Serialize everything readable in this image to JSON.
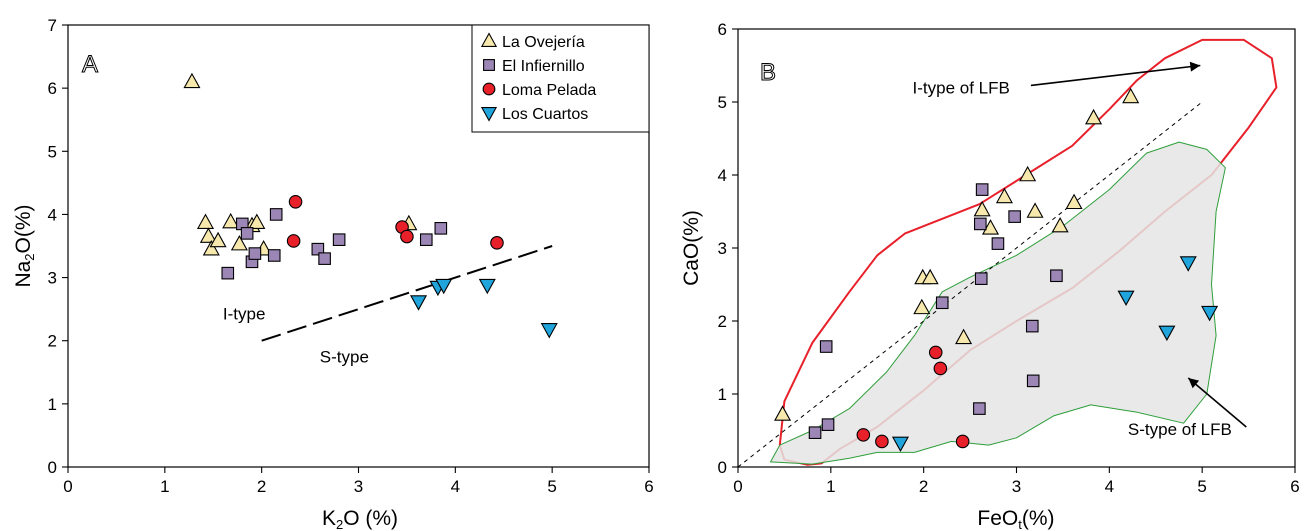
{
  "chart_data": [
    {
      "type": "scatter",
      "panel_label": "A",
      "xlabel": "K",
      "xlabel_sub": "2",
      "xlabel_tail": "O (%)",
      "ylabel": "Na",
      "ylabel_sub": "2",
      "ylabel_tail": "O(%)",
      "xlim": [
        0,
        6
      ],
      "ylim": [
        0,
        7
      ],
      "xticks": [
        "0",
        "1",
        "2",
        "3",
        "4",
        "5",
        "6"
      ],
      "yticks": [
        "0",
        "1",
        "2",
        "3",
        "4",
        "5",
        "6",
        "7"
      ],
      "legend": {
        "placement": "top-right",
        "entries": [
          {
            "label": "La Ovejería",
            "marker": "triangle-up",
            "color": "#f7e8ad"
          },
          {
            "label": "El Infiernillo",
            "marker": "square",
            "color": "#9b86b5"
          },
          {
            "label": "Loma Pelada",
            "marker": "circle",
            "color": "#e8202a"
          },
          {
            "label": "Los Cuartos",
            "marker": "triangle-down",
            "color": "#1fa5dc"
          }
        ]
      },
      "series": [
        {
          "name": "La Ovejería",
          "marker": "triangle-up",
          "color": "#f7e8ad",
          "points": [
            [
              1.28,
              6.1
            ],
            [
              1.42,
              3.87
            ],
            [
              1.45,
              3.65
            ],
            [
              1.48,
              3.45
            ],
            [
              1.55,
              3.58
            ],
            [
              1.68,
              3.88
            ],
            [
              1.77,
              3.53
            ],
            [
              1.9,
              3.82
            ],
            [
              1.95,
              3.87
            ],
            [
              2.02,
              3.45
            ],
            [
              3.52,
              3.85
            ]
          ]
        },
        {
          "name": "El Infiernillo",
          "marker": "square",
          "color": "#9b86b5",
          "points": [
            [
              1.65,
              3.07
            ],
            [
              1.8,
              3.85
            ],
            [
              1.85,
              3.7
            ],
            [
              1.9,
              3.25
            ],
            [
              1.93,
              3.38
            ],
            [
              2.13,
              3.35
            ],
            [
              2.15,
              4.0
            ],
            [
              2.58,
              3.45
            ],
            [
              2.65,
              3.3
            ],
            [
              2.8,
              3.6
            ],
            [
              3.7,
              3.6
            ],
            [
              3.85,
              3.78
            ]
          ]
        },
        {
          "name": "Loma Pelada",
          "marker": "circle",
          "color": "#e8202a",
          "points": [
            [
              2.33,
              3.58
            ],
            [
              2.35,
              4.2
            ],
            [
              3.45,
              3.8
            ],
            [
              3.5,
              3.65
            ],
            [
              4.43,
              3.55
            ]
          ]
        },
        {
          "name": "Los Cuartos",
          "marker": "triangle-down",
          "color": "#1fa5dc",
          "points": [
            [
              3.62,
              2.62
            ],
            [
              3.82,
              2.85
            ],
            [
              3.88,
              2.88
            ],
            [
              4.33,
              2.88
            ],
            [
              4.97,
              2.18
            ]
          ]
        }
      ],
      "divider": {
        "x": [
          2.0,
          5.0
        ],
        "y": [
          2.0,
          3.5
        ],
        "style": "dashed"
      },
      "annotations": [
        {
          "text": "I-type",
          "x": 1.6,
          "y": 2.43
        },
        {
          "text": "S-type",
          "x": 2.6,
          "y": 1.75
        }
      ]
    },
    {
      "type": "scatter",
      "panel_label": "B",
      "xlabel": "FeO",
      "xlabel_sub": "t",
      "xlabel_tail": "(%)",
      "ylabel": "CaO(%)",
      "xlim": [
        0,
        6
      ],
      "ylim": [
        0,
        6
      ],
      "xticks": [
        "0",
        "1",
        "2",
        "3",
        "4",
        "5",
        "6"
      ],
      "yticks": [
        "0",
        "1",
        "2",
        "3",
        "4",
        "5",
        "6"
      ],
      "series": [
        {
          "name": "La Ovejería",
          "marker": "triangle-up",
          "color": "#f7e8ad",
          "points": [
            [
              0.48,
              0.72
            ],
            [
              1.98,
              2.18
            ],
            [
              1.99,
              2.59
            ],
            [
              2.07,
              2.59
            ],
            [
              2.43,
              1.77
            ],
            [
              2.63,
              3.52
            ],
            [
              2.72,
              3.27
            ],
            [
              2.87,
              3.7
            ],
            [
              3.12,
              4.0
            ],
            [
              3.2,
              3.5
            ],
            [
              3.47,
              3.3
            ],
            [
              3.62,
              3.62
            ],
            [
              3.83,
              4.78
            ],
            [
              4.23,
              5.07
            ]
          ]
        },
        {
          "name": "El Infiernillo",
          "marker": "square",
          "color": "#9b86b5",
          "points": [
            [
              0.83,
              0.47
            ],
            [
              0.95,
              1.65
            ],
            [
              0.97,
              0.58
            ],
            [
              2.2,
              2.25
            ],
            [
              2.6,
              0.8
            ],
            [
              2.61,
              3.33
            ],
            [
              2.62,
              2.58
            ],
            [
              2.63,
              3.8
            ],
            [
              2.8,
              3.06
            ],
            [
              2.98,
              3.43
            ],
            [
              3.17,
              1.93
            ],
            [
              3.18,
              1.18
            ],
            [
              3.43,
              2.62
            ]
          ]
        },
        {
          "name": "Loma Pelada",
          "marker": "circle",
          "color": "#e8202a",
          "points": [
            [
              1.35,
              0.44
            ],
            [
              1.55,
              0.35
            ],
            [
              2.13,
              1.57
            ],
            [
              2.18,
              1.35
            ],
            [
              2.42,
              0.35
            ]
          ]
        },
        {
          "name": "Los Cuartos",
          "marker": "triangle-down",
          "color": "#1fa5dc",
          "points": [
            [
              1.75,
              0.33
            ],
            [
              4.18,
              2.33
            ],
            [
              4.62,
              1.85
            ],
            [
              4.85,
              2.8
            ],
            [
              5.08,
              2.12
            ]
          ]
        }
      ],
      "fields": [
        {
          "name": "I-type of LFB",
          "color": "#e8202a",
          "outline": [
            [
              0.45,
              0.3
            ],
            [
              0.5,
              0.9
            ],
            [
              0.8,
              1.7
            ],
            [
              1.2,
              2.4
            ],
            [
              1.5,
              2.9
            ],
            [
              1.8,
              3.2
            ],
            [
              2.2,
              3.4
            ],
            [
              2.6,
              3.6
            ],
            [
              3.1,
              4.0
            ],
            [
              3.6,
              4.4
            ],
            [
              4.0,
              4.9
            ],
            [
              4.3,
              5.3
            ],
            [
              4.6,
              5.6
            ],
            [
              5.0,
              5.85
            ],
            [
              5.45,
              5.85
            ],
            [
              5.75,
              5.6
            ],
            [
              5.8,
              5.2
            ],
            [
              5.5,
              4.65
            ],
            [
              5.1,
              4.0
            ],
            [
              4.6,
              3.5
            ],
            [
              4.1,
              2.95
            ],
            [
              3.6,
              2.45
            ],
            [
              3.0,
              2.0
            ],
            [
              2.5,
              1.6
            ],
            [
              2.0,
              1.05
            ],
            [
              1.5,
              0.55
            ],
            [
              1.1,
              0.25
            ],
            [
              0.9,
              0.05
            ],
            [
              0.75,
              0.03
            ],
            [
              0.5,
              0.1
            ],
            [
              0.45,
              0.3
            ]
          ]
        },
        {
          "name": "S-type of LFB",
          "color": "#2e9e3a",
          "outline": [
            [
              0.35,
              0.07
            ],
            [
              0.45,
              0.3
            ],
            [
              0.8,
              0.5
            ],
            [
              1.2,
              0.8
            ],
            [
              1.6,
              1.3
            ],
            [
              1.9,
              1.8
            ],
            [
              2.2,
              2.4
            ],
            [
              2.5,
              2.6
            ],
            [
              3.0,
              2.9
            ],
            [
              3.5,
              3.3
            ],
            [
              4.0,
              3.8
            ],
            [
              4.4,
              4.3
            ],
            [
              4.75,
              4.45
            ],
            [
              5.05,
              4.35
            ],
            [
              5.25,
              4.1
            ],
            [
              5.15,
              3.5
            ],
            [
              5.1,
              2.5
            ],
            [
              5.15,
              1.8
            ],
            [
              5.05,
              1.0
            ],
            [
              4.8,
              0.6
            ],
            [
              4.3,
              0.75
            ],
            [
              3.8,
              0.85
            ],
            [
              3.4,
              0.7
            ],
            [
              3.0,
              0.4
            ],
            [
              2.7,
              0.3
            ],
            [
              2.3,
              0.35
            ],
            [
              1.9,
              0.2
            ],
            [
              1.5,
              0.2
            ],
            [
              1.2,
              0.12
            ],
            [
              0.8,
              0.04
            ],
            [
              0.35,
              0.07
            ]
          ]
        }
      ],
      "divider": {
        "x": [
          0.0,
          5.0
        ],
        "y": [
          0.0,
          5.0
        ],
        "style": "dotted"
      },
      "annotations": [
        {
          "text": "I-type of LFB",
          "x": 1.88,
          "y": 5.2,
          "arrow_to": [
            4.98,
            5.5
          ]
        },
        {
          "text": "S-type of LFB",
          "x": 4.2,
          "y": 0.52,
          "arrow_to": [
            4.85,
            1.22
          ]
        }
      ]
    }
  ]
}
